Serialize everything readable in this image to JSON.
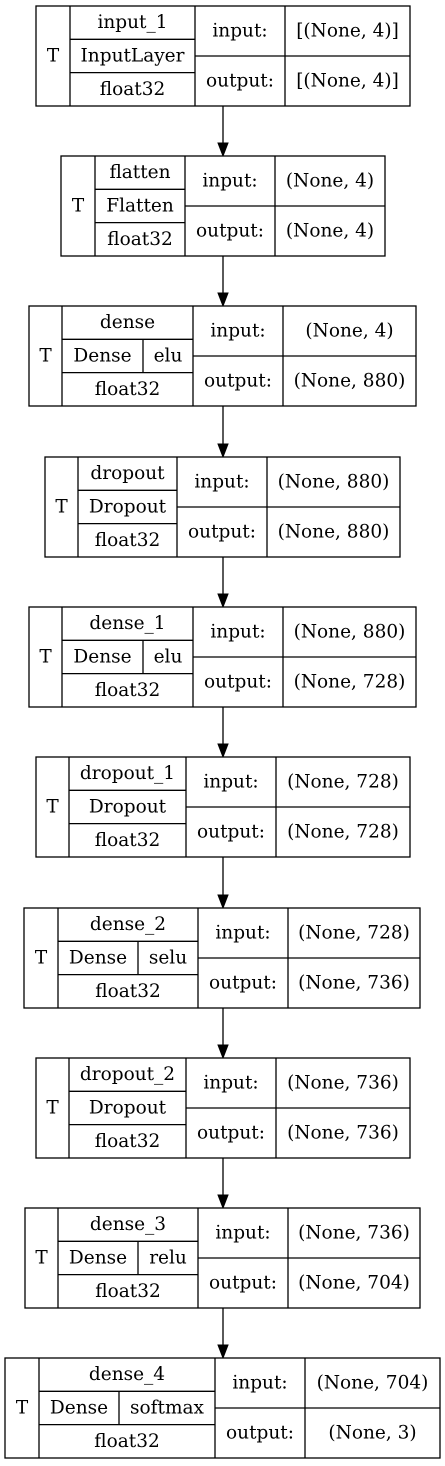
{
  "diagram": {
    "labels": {
      "type_marker": "T",
      "input": "input:",
      "output": "output:"
    },
    "nodes": [
      {
        "name": "input_1",
        "class_name": "InputLayer",
        "activation": "",
        "dtype": "float32",
        "input_shape": "[(None, 4)]",
        "output_shape": "[(None, 4)]"
      },
      {
        "name": "flatten",
        "class_name": "Flatten",
        "activation": "",
        "dtype": "float32",
        "input_shape": "(None, 4)",
        "output_shape": "(None, 4)"
      },
      {
        "name": "dense",
        "class_name": "Dense",
        "activation": "elu",
        "dtype": "float32",
        "input_shape": "(None, 4)",
        "output_shape": "(None, 880)"
      },
      {
        "name": "dropout",
        "class_name": "Dropout",
        "activation": "",
        "dtype": "float32",
        "input_shape": "(None, 880)",
        "output_shape": "(None, 880)"
      },
      {
        "name": "dense_1",
        "class_name": "Dense",
        "activation": "elu",
        "dtype": "float32",
        "input_shape": "(None, 880)",
        "output_shape": "(None, 728)"
      },
      {
        "name": "dropout_1",
        "class_name": "Dropout",
        "activation": "",
        "dtype": "float32",
        "input_shape": "(None, 728)",
        "output_shape": "(None, 728)"
      },
      {
        "name": "dense_2",
        "class_name": "Dense",
        "activation": "selu",
        "dtype": "float32",
        "input_shape": "(None, 728)",
        "output_shape": "(None, 736)"
      },
      {
        "name": "dropout_2",
        "class_name": "Dropout",
        "activation": "",
        "dtype": "float32",
        "input_shape": "(None, 736)",
        "output_shape": "(None, 736)"
      },
      {
        "name": "dense_3",
        "class_name": "Dense",
        "activation": "relu",
        "dtype": "float32",
        "input_shape": "(None, 736)",
        "output_shape": "(None, 704)"
      },
      {
        "name": "dense_4",
        "class_name": "Dense",
        "activation": "softmax",
        "dtype": "float32",
        "input_shape": "(None, 704)",
        "output_shape": "(None, 3)"
      }
    ]
  }
}
